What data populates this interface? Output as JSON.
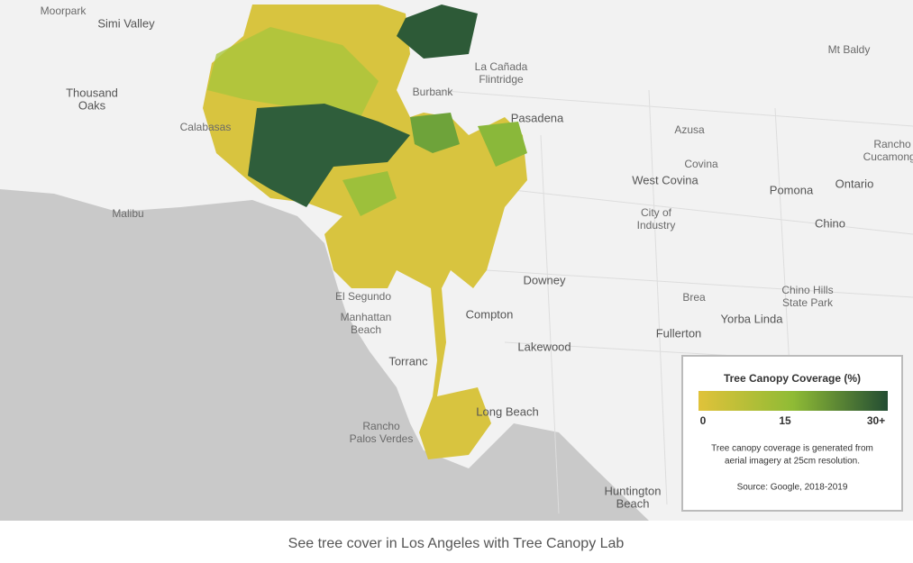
{
  "places": [
    [
      "Moorpark"
    ],
    [
      "Simi Valley"
    ],
    [
      "Thousand",
      "Oaks"
    ],
    [
      "Calabasas"
    ],
    [
      "Malibu"
    ],
    [
      "Burbank"
    ],
    [
      "La Cañada",
      "Flintridge"
    ],
    [
      "Pasadena"
    ],
    [
      "Azusa"
    ],
    [
      "Mt Baldy"
    ],
    [
      "Covina"
    ],
    [
      "West Covina"
    ],
    [
      "Pomona"
    ],
    [
      "Ontario"
    ],
    [
      "Rancho",
      "Cucamonga"
    ],
    [
      "City of",
      "Industry"
    ],
    [
      "Chino"
    ],
    [
      "Downey"
    ],
    [
      "Brea"
    ],
    [
      "Chino Hills",
      "State Park"
    ],
    [
      "Yorba Linda"
    ],
    [
      "Fullerton"
    ],
    [
      "Compton"
    ],
    [
      "Lakewood"
    ],
    [
      "El Segundo"
    ],
    [
      "Manhattan",
      "Beach"
    ],
    [
      "Torranc"
    ],
    [
      "Long Beach"
    ],
    [
      "Rancho",
      "Palos Verdes"
    ],
    [
      "Huntington",
      "Beach"
    ]
  ],
  "legend": {
    "title": "Tree Canopy Coverage (%)",
    "ticks": [
      "0",
      "15",
      "30+"
    ],
    "note": [
      "Tree canopy coverage is generated from",
      "aerial imagery at 25cm resolution."
    ],
    "source": "Source: Google, 2018-2019"
  },
  "caption": "See tree cover in Los Angeles with Tree Canopy Lab"
}
